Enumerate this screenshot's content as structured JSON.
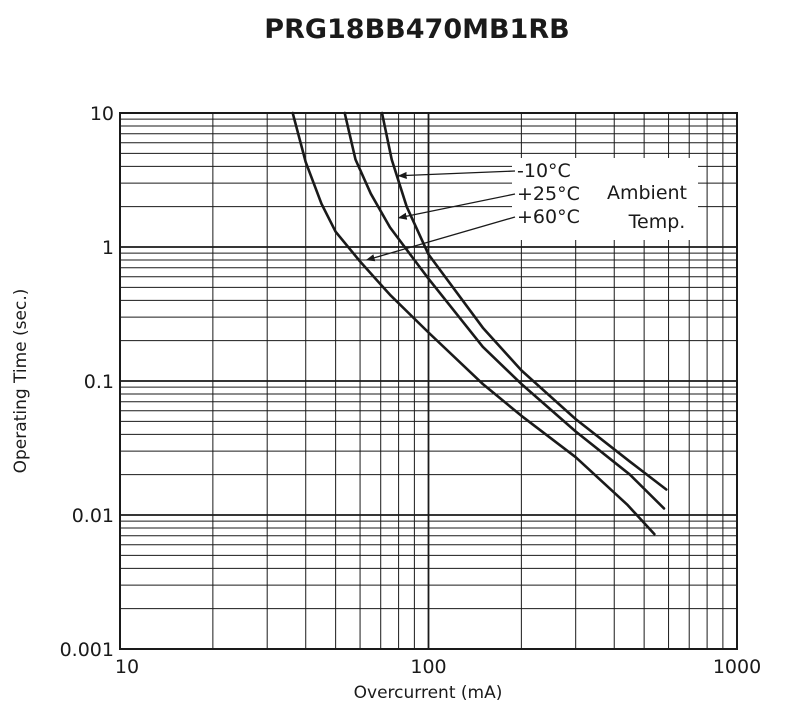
{
  "chart_data": {
    "type": "line",
    "title": "PRG18BB470MB1RB",
    "xlabel": "Overcurrent (mA)",
    "ylabel": "Operating Time (sec.)",
    "xscale": "log",
    "yscale": "log",
    "xlim": [
      10,
      1000
    ],
    "ylim": [
      0.001,
      10
    ],
    "grid": true,
    "x_ticks": [
      {
        "value": 10,
        "label": "10"
      },
      {
        "value": 100,
        "label": "100"
      },
      {
        "value": 1000,
        "label": "1000"
      }
    ],
    "y_ticks": [
      {
        "value": 10,
        "label": "10"
      },
      {
        "value": 1,
        "label": "1"
      },
      {
        "value": 0.1,
        "label": "0.1"
      },
      {
        "value": 0.01,
        "label": "0.01"
      },
      {
        "value": 0.001,
        "label": "0.001"
      }
    ],
    "series": [
      {
        "name": "+60°C",
        "color": "#1a1a1a",
        "points": [
          [
            36.3,
            10
          ],
          [
            40,
            4.3
          ],
          [
            45,
            2.1
          ],
          [
            50,
            1.3
          ],
          [
            60,
            0.78
          ],
          [
            75,
            0.44
          ],
          [
            100,
            0.23
          ],
          [
            150,
            0.095
          ],
          [
            200,
            0.055
          ],
          [
            300,
            0.027
          ],
          [
            440,
            0.012
          ],
          [
            540,
            0.0072
          ]
        ]
      },
      {
        "name": "+25°C",
        "color": "#1a1a1a",
        "points": [
          [
            53.5,
            10
          ],
          [
            58,
            4.5
          ],
          [
            65,
            2.5
          ],
          [
            75,
            1.4
          ],
          [
            90,
            0.8
          ],
          [
            100,
            0.58
          ],
          [
            150,
            0.18
          ],
          [
            200,
            0.095
          ],
          [
            300,
            0.042
          ],
          [
            450,
            0.02
          ],
          [
            580,
            0.0112
          ]
        ]
      },
      {
        "name": "-10°C",
        "color": "#1a1a1a",
        "points": [
          [
            70.7,
            10
          ],
          [
            76,
            4.5
          ],
          [
            85,
            2.0
          ],
          [
            100,
            0.88
          ],
          [
            150,
            0.25
          ],
          [
            200,
            0.12
          ],
          [
            300,
            0.052
          ],
          [
            450,
            0.025
          ],
          [
            590,
            0.0155
          ]
        ]
      }
    ],
    "annotations": [
      {
        "text": "-10°C",
        "target": [
          80,
          3.4
        ]
      },
      {
        "text": "+25°C",
        "target": [
          80,
          1.65
        ]
      },
      {
        "text": "+60°C",
        "target": [
          63,
          0.8
        ]
      },
      {
        "text": "Ambient"
      },
      {
        "text": "Temp."
      }
    ]
  }
}
